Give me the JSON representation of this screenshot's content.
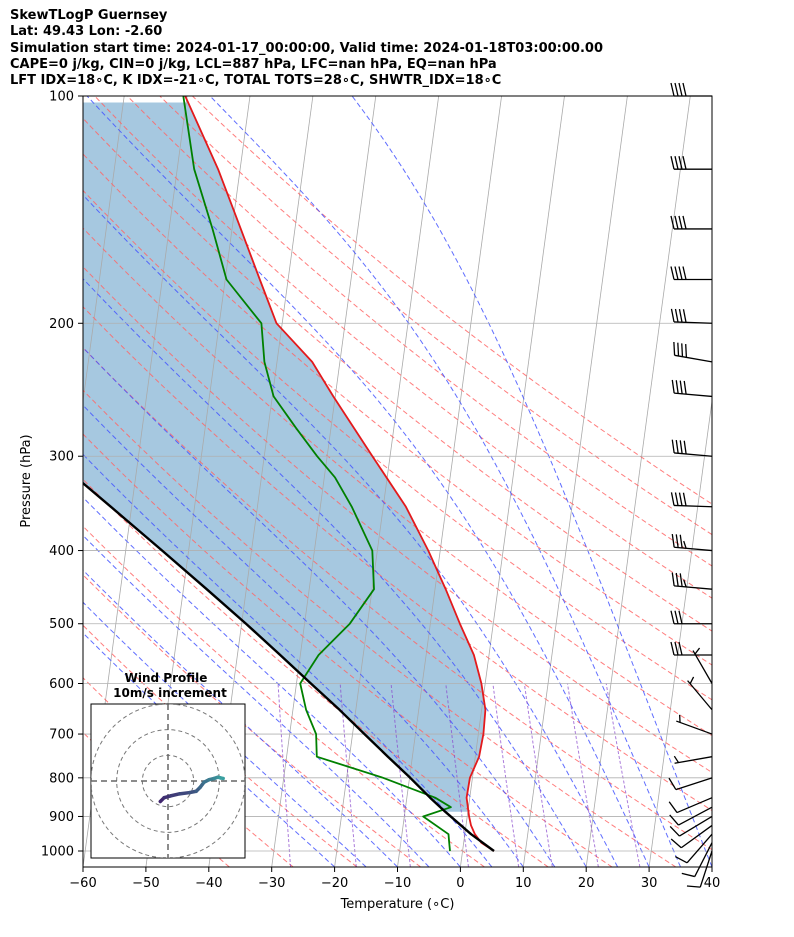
{
  "title_lines": [
    "SkewTLogP Guernsey",
    "Lat: 49.43   Lon: -2.60",
    "Simulation start time: 2024-01-17_00:00:00, Valid time: 2024-01-18T03:00:00.00",
    "CAPE=0 j/kg, CIN=0 j/kg, LCL=887 hPa, LFC=nan hPa, EQ=nan hPa",
    "LFT IDX=18∘C, K IDX=-21∘C, TOTAL TOTS=28∘C, SHWTR_IDX=18∘C"
  ],
  "colors": {
    "temperature": "#e31a1c",
    "dewpoint": "#008000",
    "parcel": "#000000",
    "cape_fill": "#a6c8e0",
    "dry_adiabat": "#ff6666",
    "moist_adiabat": "#4455ff",
    "isotherm": "#aaaaaa",
    "mixing_ratio": "#8844cc",
    "hodo_low": "#40266e",
    "hodo_high": "#3aa0a0"
  },
  "chart_data": {
    "type": "line",
    "subtype": "skew-t log-p",
    "xlabel": "Temperature (∘C)",
    "ylabel": "Pressure (hPa)",
    "xlim": [
      -60,
      40
    ],
    "ylim": [
      1050,
      100
    ],
    "yscale": "log",
    "xticks": [
      -60,
      -50,
      -40,
      -30,
      -20,
      -10,
      0,
      10,
      20,
      30,
      40
    ],
    "yticks": [
      1000,
      900,
      800,
      700,
      600,
      500,
      400,
      300,
      200,
      100
    ],
    "grid": true,
    "series": [
      {
        "key": "temperature",
        "points": [
          [
            1000,
            5.0
          ],
          [
            975,
            2.8
          ],
          [
            950,
            1.6
          ],
          [
            925,
            0.8
          ],
          [
            900,
            0.3
          ],
          [
            850,
            -0.5
          ],
          [
            800,
            -0.4
          ],
          [
            750,
            0.6
          ],
          [
            700,
            0.8
          ],
          [
            650,
            0.6
          ],
          [
            600,
            -0.6
          ],
          [
            550,
            -2.4
          ],
          [
            500,
            -5.3
          ],
          [
            450,
            -8.3
          ],
          [
            400,
            -11.9
          ],
          [
            350,
            -16.4
          ],
          [
            300,
            -22.8
          ],
          [
            250,
            -30.3
          ],
          [
            225,
            -34.4
          ],
          [
            200,
            -40.9
          ],
          [
            175,
            -44.5
          ],
          [
            150,
            -48.6
          ],
          [
            125,
            -53.5
          ],
          [
            100,
            -60.3
          ]
        ]
      },
      {
        "key": "dewpoint",
        "points": [
          [
            1000,
            -2.0
          ],
          [
            975,
            -2.3
          ],
          [
            950,
            -2.6
          ],
          [
            900,
            -7.0
          ],
          [
            875,
            -2.8
          ],
          [
            850,
            -5.5
          ],
          [
            800,
            -14.2
          ],
          [
            750,
            -25.2
          ],
          [
            700,
            -25.8
          ],
          [
            650,
            -27.9
          ],
          [
            600,
            -29.4
          ],
          [
            550,
            -27.1
          ],
          [
            500,
            -22.8
          ],
          [
            450,
            -19.7
          ],
          [
            400,
            -20.8
          ],
          [
            350,
            -25.0
          ],
          [
            320,
            -28.3
          ],
          [
            300,
            -31.6
          ],
          [
            275,
            -35.6
          ],
          [
            250,
            -39.8
          ],
          [
            225,
            -42.0
          ],
          [
            200,
            -43.3
          ],
          [
            175,
            -49.8
          ],
          [
            150,
            -53.1
          ],
          [
            125,
            -57.3
          ],
          [
            100,
            -60.6
          ]
        ]
      },
      {
        "key": "parcel",
        "points": [
          [
            1000,
            5.0
          ],
          [
            950,
            1.0
          ],
          [
            887,
            -3.6
          ],
          [
            850,
            -6.3
          ],
          [
            800,
            -9.9
          ],
          [
            750,
            -13.9
          ],
          [
            700,
            -18.1
          ],
          [
            650,
            -22.6
          ],
          [
            600,
            -27.7
          ],
          [
            550,
            -33.2
          ],
          [
            500,
            -39.3
          ],
          [
            450,
            -46.3
          ],
          [
            400,
            -54.2
          ],
          [
            350,
            -63.3
          ],
          [
            300,
            -73.9
          ],
          [
            250,
            -86.5
          ],
          [
            200,
            -101.6
          ],
          [
            175,
            -110.6
          ],
          [
            150,
            -120.7
          ],
          [
            125,
            -132.6
          ],
          [
            100,
            -147.0
          ]
        ]
      }
    ],
    "wind_barbs": [
      {
        "pressure": 1000,
        "speed_kt": 10,
        "direction_deg": 198
      },
      {
        "pressure": 975,
        "speed_kt": 10,
        "direction_deg": 207
      },
      {
        "pressure": 950,
        "speed_kt": 10,
        "direction_deg": 221
      },
      {
        "pressure": 925,
        "speed_kt": 10,
        "direction_deg": 234
      },
      {
        "pressure": 900,
        "speed_kt": 10,
        "direction_deg": 239
      },
      {
        "pressure": 875,
        "speed_kt": 10,
        "direction_deg": 242
      },
      {
        "pressure": 850,
        "speed_kt": 10,
        "direction_deg": 247
      },
      {
        "pressure": 800,
        "speed_kt": 10,
        "direction_deg": 252
      },
      {
        "pressure": 750,
        "speed_kt": 5,
        "direction_deg": 260
      },
      {
        "pressure": 700,
        "speed_kt": 5,
        "direction_deg": 290
      },
      {
        "pressure": 650,
        "speed_kt": 5,
        "direction_deg": 320
      },
      {
        "pressure": 600,
        "speed_kt": 5,
        "direction_deg": 330
      },
      {
        "pressure": 550,
        "speed_kt": 30,
        "direction_deg": 270
      },
      {
        "pressure": 500,
        "speed_kt": 30,
        "direction_deg": 270
      },
      {
        "pressure": 450,
        "speed_kt": 35,
        "direction_deg": 275
      },
      {
        "pressure": 400,
        "speed_kt": 35,
        "direction_deg": 275
      },
      {
        "pressure": 350,
        "speed_kt": 40,
        "direction_deg": 272
      },
      {
        "pressure": 300,
        "speed_kt": 40,
        "direction_deg": 275
      },
      {
        "pressure": 250,
        "speed_kt": 40,
        "direction_deg": 275
      },
      {
        "pressure": 225,
        "speed_kt": 40,
        "direction_deg": 280
      },
      {
        "pressure": 200,
        "speed_kt": 40,
        "direction_deg": 272
      },
      {
        "pressure": 175,
        "speed_kt": 40,
        "direction_deg": 270
      },
      {
        "pressure": 150,
        "speed_kt": 40,
        "direction_deg": 270
      },
      {
        "pressure": 125,
        "speed_kt": 40,
        "direction_deg": 270
      },
      {
        "pressure": 100,
        "speed_kt": 40,
        "direction_deg": 270
      }
    ],
    "hodograph": {
      "title": "Wind Profile",
      "subtitle": "10m/s increment",
      "ring_step_ms": 10,
      "range_ms": 30,
      "points_uv": [
        [
          -3.0,
          -8.0
        ],
        [
          -1.5,
          -6.5
        ],
        [
          1.0,
          -5.8
        ],
        [
          4.5,
          -5.0
        ],
        [
          8.5,
          -4.5
        ],
        [
          11.0,
          -4.0
        ],
        [
          12.5,
          -2.5
        ],
        [
          14.0,
          -0.5
        ],
        [
          16.0,
          0.5
        ],
        [
          18.0,
          1.0
        ],
        [
          19.5,
          1.5
        ],
        [
          20.5,
          1.2
        ],
        [
          21.5,
          1.0
        ]
      ]
    }
  }
}
